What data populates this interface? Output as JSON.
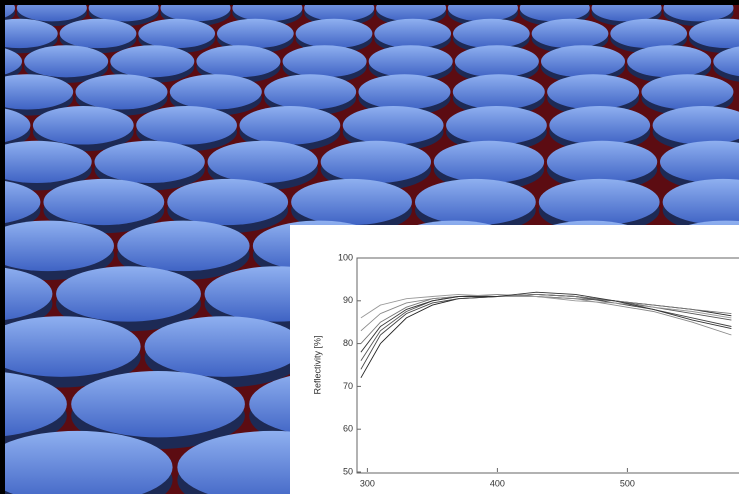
{
  "chart_data": {
    "type": "line",
    "y_label": "Reflectivity [%]",
    "x": [
      295,
      310,
      330,
      350,
      370,
      400,
      430,
      460,
      490,
      520,
      550,
      580
    ],
    "series": [
      {
        "color": "#222222",
        "values": [
          72,
          80,
          86,
          89,
          90.5,
          91,
          91.5,
          91,
          90,
          89,
          88,
          86.5
        ]
      },
      {
        "color": "#444444",
        "values": [
          74,
          82,
          87,
          89.5,
          90.5,
          91,
          91.5,
          91,
          89.5,
          88,
          86,
          84
        ]
      },
      {
        "color": "#555555",
        "values": [
          76,
          83,
          87.5,
          90,
          91,
          91,
          91,
          90.5,
          90,
          88.5,
          87,
          85.5
        ]
      },
      {
        "color": "#777777",
        "values": [
          80,
          85,
          88.5,
          90.5,
          91,
          91,
          91.5,
          91,
          90,
          89,
          88,
          87
        ]
      },
      {
        "color": "#888888",
        "values": [
          83,
          87,
          89.5,
          90.5,
          91,
          91.5,
          91,
          90.5,
          89,
          87.5,
          85,
          82
        ]
      },
      {
        "color": "#999999",
        "values": [
          86,
          89,
          90.5,
          91,
          91.5,
          91,
          91,
          90,
          89.5,
          88.5,
          87.5,
          86
        ]
      },
      {
        "color": "#333333",
        "values": [
          78,
          84,
          88,
          90,
          91,
          91,
          92,
          91.5,
          90,
          88,
          85.5,
          83.5
        ]
      }
    ],
    "xlim": [
      292,
      585
    ],
    "xticks": [
      300,
      400,
      500
    ],
    "ylim": [
      50,
      100
    ],
    "yticks": [
      50,
      60,
      70,
      80,
      90,
      100
    ]
  }
}
